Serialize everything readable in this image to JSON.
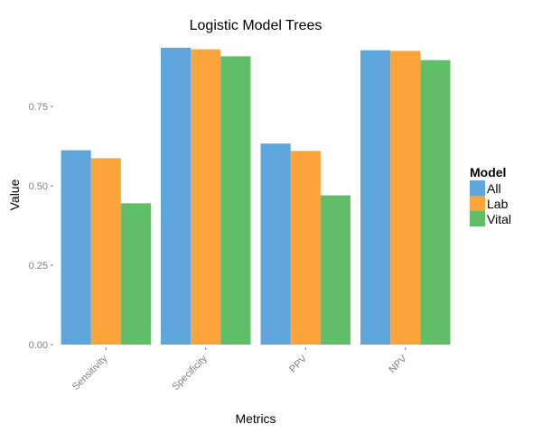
{
  "chart_data": {
    "type": "bar",
    "title": "Logistic Model Trees",
    "xlabel": "Metrics",
    "ylabel": "Value",
    "categories": [
      "Sensitivity",
      "Specificity",
      "PPV",
      "NPV"
    ],
    "series": [
      {
        "name": "All",
        "color": "#5da5da",
        "values": [
          0.612,
          0.935,
          0.633,
          0.927
        ]
      },
      {
        "name": "Lab",
        "color": "#faa43a",
        "values": [
          0.587,
          0.93,
          0.61,
          0.925
        ]
      },
      {
        "name": "Vital",
        "color": "#60bd68",
        "values": [
          0.445,
          0.908,
          0.47,
          0.896
        ]
      }
    ],
    "y_ticks": [
      "0.00",
      "0.25",
      "0.50",
      "0.75"
    ],
    "ylim": [
      0,
      0.96
    ],
    "grid": false,
    "legend": {
      "title": "Model",
      "position": "right"
    }
  }
}
